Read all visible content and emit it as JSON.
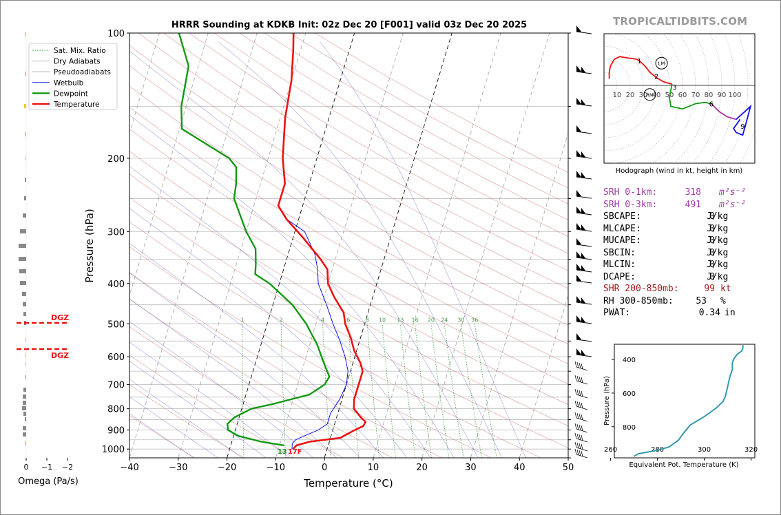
{
  "title": "HRRR Sounding at KDKB Init: 02z Dec 20 [F001] valid 03z Dec 20 2025",
  "brand": "TROPICALTIDBITS.COM",
  "chart_data": {
    "type": "skew-t",
    "xlabel": "Temperature (°C)",
    "ylabel": "Pressure (hPa)",
    "xlim": [
      -40,
      50
    ],
    "ylim": [
      1050,
      100
    ],
    "x_ticks": [
      "−40",
      "−30",
      "−20",
      "−10",
      "0",
      "10",
      "20",
      "30",
      "40",
      "50"
    ],
    "p_ticks": [
      "100",
      "200",
      "300",
      "400",
      "500",
      "600",
      "700",
      "800",
      "900",
      "1000"
    ],
    "mixing_ratio_labels": [
      "1",
      "2",
      "4",
      "6",
      "8",
      "10",
      "13",
      "16",
      "20",
      "24",
      "30",
      "36"
    ],
    "legend": [
      "Sat. Mix. Ratio",
      "Dry Adiabats",
      "Pseudoadiabats",
      "Wetbulb",
      "Dewpoint",
      "Temperature"
    ],
    "colors": {
      "temperature": "#ee1111",
      "dewpoint": "#119911",
      "wetbulb": "#1111ee",
      "dgz": "#ee1111",
      "hodo_line": "#3399aa"
    },
    "temperature": [
      [
        1000,
        -7
      ],
      [
        980,
        -6.5
      ],
      [
        960,
        -4
      ],
      [
        940,
        2
      ],
      [
        900,
        4.5
      ],
      [
        880,
        6
      ],
      [
        860,
        6.2
      ],
      [
        840,
        5
      ],
      [
        800,
        3
      ],
      [
        760,
        2.5
      ],
      [
        700,
        2.5
      ],
      [
        650,
        2.5
      ],
      [
        620,
        1.5
      ],
      [
        580,
        -0.5
      ],
      [
        540,
        -2
      ],
      [
        500,
        -4
      ],
      [
        470,
        -5
      ],
      [
        430,
        -8
      ],
      [
        400,
        -10
      ],
      [
        370,
        -11
      ],
      [
        350,
        -13
      ],
      [
        310,
        -18
      ],
      [
        280,
        -22.5
      ],
      [
        260,
        -25
      ],
      [
        230,
        -25
      ],
      [
        200,
        -27
      ],
      [
        160,
        -29
      ],
      [
        130,
        -30
      ],
      [
        110,
        -31.5
      ],
      [
        100,
        -32.5
      ]
    ],
    "dewpoint": [
      [
        980,
        -9
      ],
      [
        960,
        -14
      ],
      [
        930,
        -19
      ],
      [
        900,
        -21.5
      ],
      [
        870,
        -22
      ],
      [
        840,
        -21
      ],
      [
        800,
        -18
      ],
      [
        780,
        -14
      ],
      [
        740,
        -7
      ],
      [
        700,
        -4.5
      ],
      [
        670,
        -4
      ],
      [
        620,
        -6
      ],
      [
        560,
        -8.5
      ],
      [
        500,
        -12
      ],
      [
        450,
        -16
      ],
      [
        400,
        -22
      ],
      [
        380,
        -25.5
      ],
      [
        360,
        -26
      ],
      [
        330,
        -27
      ],
      [
        300,
        -30
      ],
      [
        250,
        -34.5
      ],
      [
        230,
        -35
      ],
      [
        210,
        -36
      ],
      [
        200,
        -38
      ],
      [
        170,
        -49.5
      ],
      [
        150,
        -51
      ],
      [
        120,
        -52
      ],
      [
        100,
        -56
      ]
    ],
    "wetbulb": [
      [
        1000,
        -7.2
      ],
      [
        970,
        -7.5
      ],
      [
        950,
        -7
      ],
      [
        930,
        -5.5
      ],
      [
        900,
        -3
      ],
      [
        870,
        -1.5
      ],
      [
        820,
        -1.5
      ],
      [
        790,
        -1
      ],
      [
        760,
        -0.5
      ],
      [
        700,
        0
      ],
      [
        650,
        -0.5
      ],
      [
        600,
        -2
      ],
      [
        550,
        -4
      ],
      [
        500,
        -6.5
      ],
      [
        450,
        -9
      ],
      [
        400,
        -12
      ],
      [
        370,
        -13
      ],
      [
        340,
        -14.5
      ],
      [
        300,
        -18
      ],
      [
        280,
        -22.5
      ],
      [
        260,
        -25
      ],
      [
        230,
        -25
      ],
      [
        200,
        -27
      ],
      [
        160,
        -29
      ],
      [
        130,
        -30
      ],
      [
        110,
        -31.5
      ],
      [
        100,
        -32.5
      ]
    ],
    "surface_labels": {
      "dewpoint": "13",
      "temperature": "17F"
    },
    "omega": {
      "xlabel": "Omega (Pa/s)",
      "x_ticks": [
        "0",
        "−1",
        "−2"
      ],
      "dgz_label_upper": "DGZ",
      "dgz_label_lower": "DGZ"
    },
    "hodograph": {
      "caption": "Hodograph (wind in kt, height in km)",
      "ring_labels": [
        "10",
        "20",
        "30",
        "40",
        "50",
        "60",
        "70",
        "80",
        "90",
        "100"
      ],
      "height_labels": [
        "1",
        "2",
        "3",
        "6",
        "9"
      ],
      "storm_motion": [
        "LM",
        "RM"
      ]
    },
    "theta_e": {
      "xlabel": "Equivalent Pot. Temperature (K)",
      "ylabel": "Pressure (hPa)",
      "x_ticks": [
        "260",
        "280",
        "300",
        "320"
      ],
      "y_ticks": [
        "400",
        "600",
        "800"
      ],
      "profile": [
        [
          975,
          270
        ],
        [
          960,
          272
        ],
        [
          940,
          280
        ],
        [
          920,
          285
        ],
        [
          880,
          289
        ],
        [
          840,
          291
        ],
        [
          790,
          294
        ],
        [
          740,
          300
        ],
        [
          690,
          305
        ],
        [
          650,
          308
        ],
        [
          620,
          309
        ],
        [
          560,
          310
        ],
        [
          500,
          311
        ],
        [
          460,
          312
        ],
        [
          420,
          312
        ],
        [
          400,
          312.5
        ],
        [
          370,
          314
        ],
        [
          350,
          316
        ],
        [
          330,
          316.5
        ],
        [
          315,
          316.5
        ]
      ]
    }
  },
  "stats": [
    {
      "label": "SRH 0-1km:",
      "value": "318",
      "unit": "m²s⁻²",
      "color": "#a03aa6"
    },
    {
      "label": "SRH 0-3km:",
      "value": "491",
      "unit": "m²s⁻²",
      "color": "#a03aa6"
    },
    {
      "label": "SBCAPE:",
      "value": "0",
      "unit": "J/kg",
      "color": "#000000"
    },
    {
      "label": "MLCAPE:",
      "value": "0",
      "unit": "J/kg",
      "color": "#000000"
    },
    {
      "label": "MUCAPE:",
      "value": "0",
      "unit": "J/kg",
      "color": "#000000"
    },
    {
      "label": "SBCIN:",
      "value": "0",
      "unit": "J/kg",
      "color": "#000000"
    },
    {
      "label": "MLCIN:",
      "value": "0",
      "unit": "J/kg",
      "color": "#000000"
    },
    {
      "label": "DCAPE:",
      "value": "0",
      "unit": "J/kg",
      "color": "#000000"
    },
    {
      "label": "SHR 200-850mb:",
      "value": "99",
      "unit": "kt",
      "color": "#a01c1c"
    },
    {
      "label": "RH 300-850mb:",
      "value": "53",
      "unit": "%",
      "color": "#000000"
    },
    {
      "label": "PWAT:",
      "value": "0.34",
      "unit": "in",
      "color": "#000000"
    }
  ]
}
